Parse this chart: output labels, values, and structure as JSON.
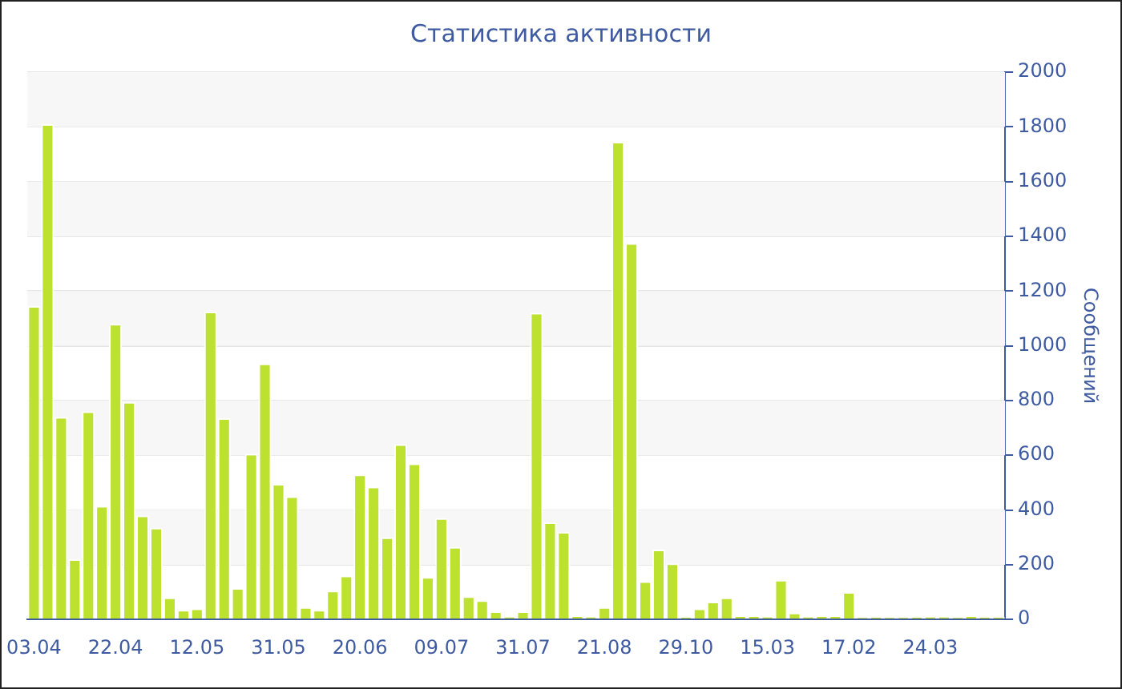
{
  "chart_data": {
    "type": "bar",
    "title": "Статистика активности",
    "ylabel": "Сообщений",
    "categories": [
      "03.04",
      null,
      null,
      null,
      null,
      null,
      "22.04",
      null,
      null,
      null,
      null,
      null,
      "12.05",
      null,
      null,
      null,
      null,
      null,
      "31.05",
      null,
      null,
      null,
      null,
      null,
      "20.06",
      null,
      null,
      null,
      null,
      null,
      "09.07",
      null,
      null,
      null,
      null,
      null,
      "31.07",
      null,
      null,
      null,
      null,
      null,
      "21.08",
      null,
      null,
      null,
      null,
      null,
      "29.10",
      null,
      null,
      null,
      null,
      null,
      "15.03",
      null,
      null,
      null,
      null,
      null,
      "17.02",
      null,
      null,
      null,
      null,
      null,
      "24.03",
      null,
      null,
      null,
      null,
      null
    ],
    "values": [
      1145,
      1810,
      740,
      220,
      760,
      415,
      1080,
      795,
      380,
      335,
      80,
      35,
      40,
      1125,
      735,
      115,
      605,
      935,
      495,
      450,
      45,
      35,
      105,
      160,
      530,
      485,
      300,
      640,
      570,
      155,
      370,
      265,
      85,
      70,
      30,
      12,
      30,
      1120,
      355,
      320,
      15,
      12,
      45,
      1745,
      1375,
      140,
      255,
      205,
      10,
      40,
      65,
      80,
      15,
      15,
      12,
      145,
      25,
      12,
      15,
      15,
      100,
      8,
      10,
      8,
      8,
      10,
      12,
      12,
      8,
      15,
      10,
      10
    ],
    "color": "#bde12f",
    "ylim": [
      0,
      2000
    ],
    "yticks": [
      0,
      200,
      400,
      600,
      800,
      1000,
      1200,
      1400,
      1600,
      1800,
      2000
    ],
    "grid": true
  }
}
